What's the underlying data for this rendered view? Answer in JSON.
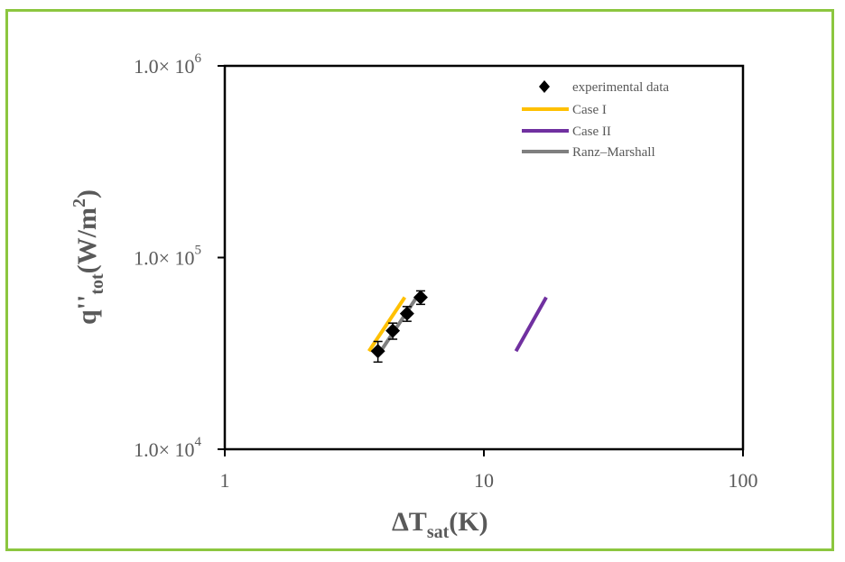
{
  "chart_data": {
    "type": "scatter",
    "x_axis": {
      "label_main": "ΔT",
      "label_sub": "sat",
      "label_tail": "(K)",
      "scale": "log",
      "range": [
        1,
        100
      ],
      "ticks": [
        1,
        10,
        100
      ],
      "tick_labels": [
        "1",
        "10",
        "100"
      ]
    },
    "y_axis": {
      "label_main": "q''",
      "label_sub": "tot",
      "label_tail": "(W/m",
      "label_sup": "2",
      "label_close": ")",
      "scale": "log",
      "range": [
        10000,
        1000000
      ],
      "ticks": [
        10000,
        100000,
        1000000
      ],
      "tick_labels": [
        {
          "mantissa": "1.0× 10",
          "exp": "4"
        },
        {
          "mantissa": "1.0× 10",
          "exp": "5"
        },
        {
          "mantissa": "1.0× 10",
          "exp": "6"
        }
      ]
    },
    "grid": false,
    "legend_position": "top-right",
    "series": [
      {
        "name": "experimental data",
        "kind": "marker",
        "marker": "diamond",
        "color": "#000000",
        "points": [
          {
            "x": 3.9,
            "y": 32500,
            "err": 4000
          },
          {
            "x": 4.45,
            "y": 41500,
            "err": 4000
          },
          {
            "x": 5.05,
            "y": 51000,
            "err": 4500
          },
          {
            "x": 5.7,
            "y": 62000,
            "err": 5000
          }
        ]
      },
      {
        "name": "Case I",
        "kind": "line",
        "color": "#ffc000",
        "points": [
          {
            "x": 3.6,
            "y": 32500
          },
          {
            "x": 4.95,
            "y": 62000
          }
        ]
      },
      {
        "name": "Case II",
        "kind": "line",
        "color": "#7030a0",
        "points": [
          {
            "x": 13.3,
            "y": 32500
          },
          {
            "x": 17.4,
            "y": 62000
          }
        ]
      },
      {
        "name": "Ranz–Marshall",
        "kind": "line",
        "color": "#7f7f7f",
        "points": [
          {
            "x": 4.0,
            "y": 32500
          },
          {
            "x": 5.5,
            "y": 62000
          }
        ]
      }
    ]
  }
}
